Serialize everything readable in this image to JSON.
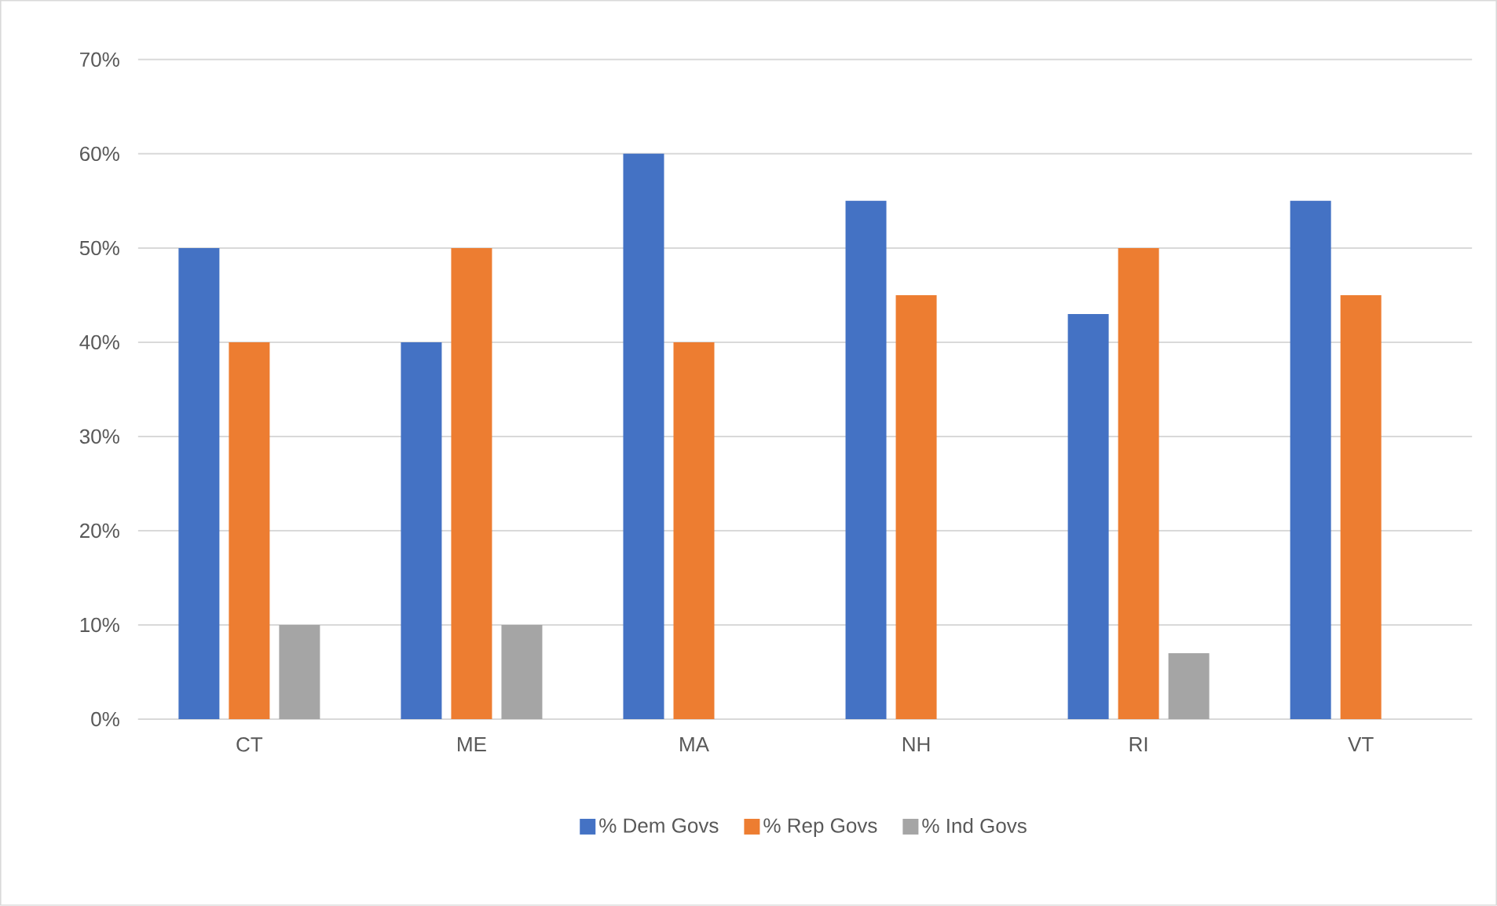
{
  "chart_data": {
    "type": "bar",
    "categories": [
      "CT",
      "ME",
      "MA",
      "NH",
      "RI",
      "VT"
    ],
    "series": [
      {
        "name": "% Dem Govs",
        "color": "#4472c4",
        "values": [
          50,
          40,
          60,
          55,
          43,
          55
        ]
      },
      {
        "name": "% Rep Govs",
        "color": "#ed7d31",
        "values": [
          40,
          50,
          40,
          45,
          50,
          45
        ]
      },
      {
        "name": "% Ind Govs",
        "color": "#a5a5a5",
        "values": [
          10,
          10,
          0,
          0,
          7,
          0
        ]
      }
    ],
    "ylim": [
      0,
      70
    ],
    "yticks": [
      {
        "value": 0,
        "label": "0%"
      },
      {
        "value": 10,
        "label": "10%"
      },
      {
        "value": 20,
        "label": "20%"
      },
      {
        "value": 30,
        "label": "30%"
      },
      {
        "value": 40,
        "label": "40%"
      },
      {
        "value": 50,
        "label": "50%"
      },
      {
        "value": 60,
        "label": "60%"
      },
      {
        "value": 70,
        "label": "70%"
      }
    ],
    "grid": "y",
    "legend": "bottom"
  }
}
